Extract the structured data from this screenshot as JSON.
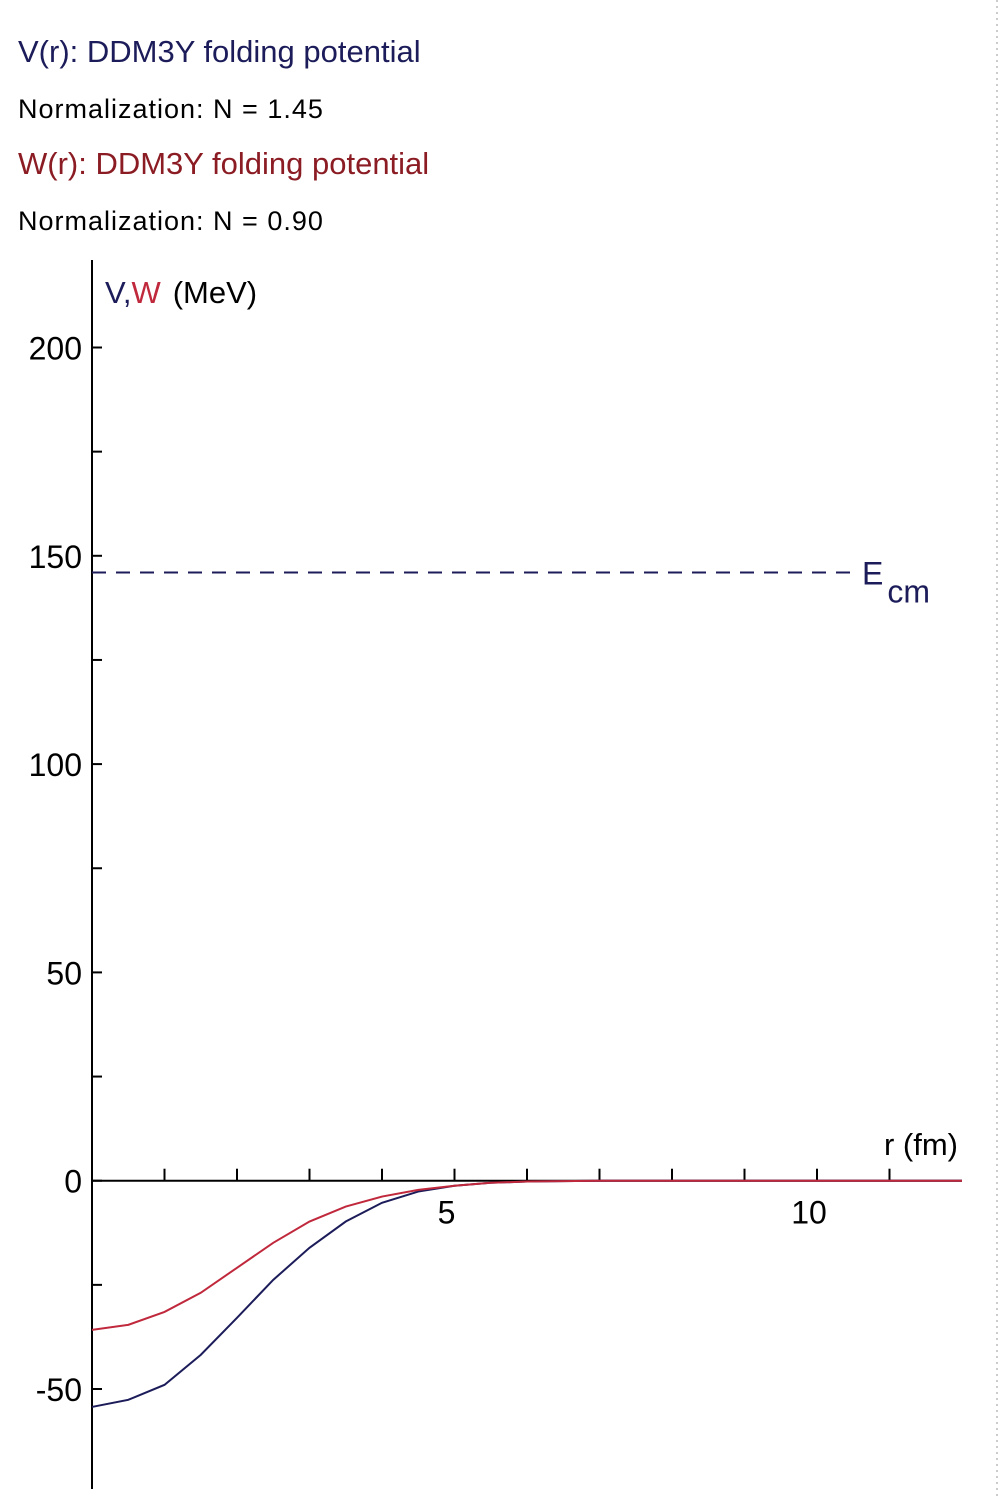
{
  "chart_data": {
    "type": "line",
    "header": [
      {
        "text": "V(r): DDM3Y folding potential",
        "color": "#1c1c5a"
      },
      {
        "text": "Normalization: N = 1.45",
        "color": "#000000"
      },
      {
        "text": "W(r): DDM3Y folding potential",
        "color": "#8b1c24"
      },
      {
        "text": "Normalization: N = 0.90",
        "color": "#000000"
      }
    ],
    "y_label_v": "V",
    "y_label_sep": ",",
    "y_label_w": "W",
    "y_label_unit": "(MeV)",
    "x_label": "r  (fm)",
    "x": [
      0,
      0.5,
      1,
      1.5,
      2,
      2.5,
      3,
      3.5,
      4,
      4.5,
      5,
      5.5,
      6,
      7,
      8,
      9,
      10,
      11,
      12
    ],
    "series": [
      {
        "name": "V",
        "color": "#1c1c5a",
        "values": [
          -54.3,
          -52.6,
          -49,
          -41.8,
          -32.9,
          -23.8,
          -16.1,
          -9.8,
          -5.3,
          -2.6,
          -1.2,
          -0.5,
          -0.2,
          0,
          0,
          0,
          0,
          0,
          0
        ]
      },
      {
        "name": "W",
        "color": "#c0283c",
        "values": [
          -35.8,
          -34.6,
          -31.5,
          -26.9,
          -20.9,
          -14.9,
          -9.8,
          -6.2,
          -3.8,
          -2.2,
          -1.2,
          -0.5,
          -0.2,
          0,
          0,
          0,
          0,
          0,
          0
        ]
      }
    ],
    "annotation": {
      "label": "E",
      "subscript": "cm",
      "value": 146,
      "color": "#1c1c5a"
    },
    "xlim": [
      0,
      12
    ],
    "ylim": [
      -74,
      221
    ],
    "xticks": [
      5,
      10
    ],
    "xminor": [
      1,
      2,
      3,
      4,
      6,
      7,
      8,
      9,
      11
    ],
    "yticks": [
      -50,
      0,
      50,
      100,
      150,
      200
    ],
    "yminor": [
      -25,
      25,
      75,
      125,
      175
    ]
  }
}
